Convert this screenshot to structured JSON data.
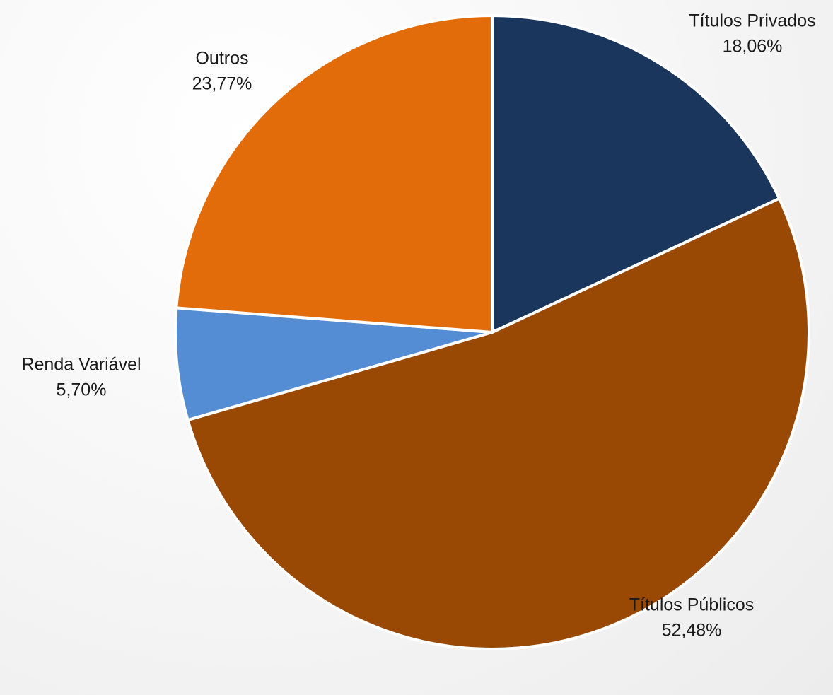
{
  "chart_data": {
    "type": "pie",
    "start_angle_deg": 0,
    "direction": "clockwise",
    "slices": [
      {
        "label": "Títulos Privados",
        "value": 18.06,
        "value_label": "18,06%",
        "color": "#1a365d"
      },
      {
        "label": "Títulos Públicos",
        "value": 52.48,
        "value_label": "52,48%",
        "color": "#9a4905"
      },
      {
        "label": "Renda Variável",
        "value": 5.7,
        "value_label": "5,70%",
        "color": "#548dd4"
      },
      {
        "label": "Outros",
        "value": 23.77,
        "value_label": "23,77%",
        "color": "#e36c0a"
      }
    ],
    "legend": "none"
  }
}
